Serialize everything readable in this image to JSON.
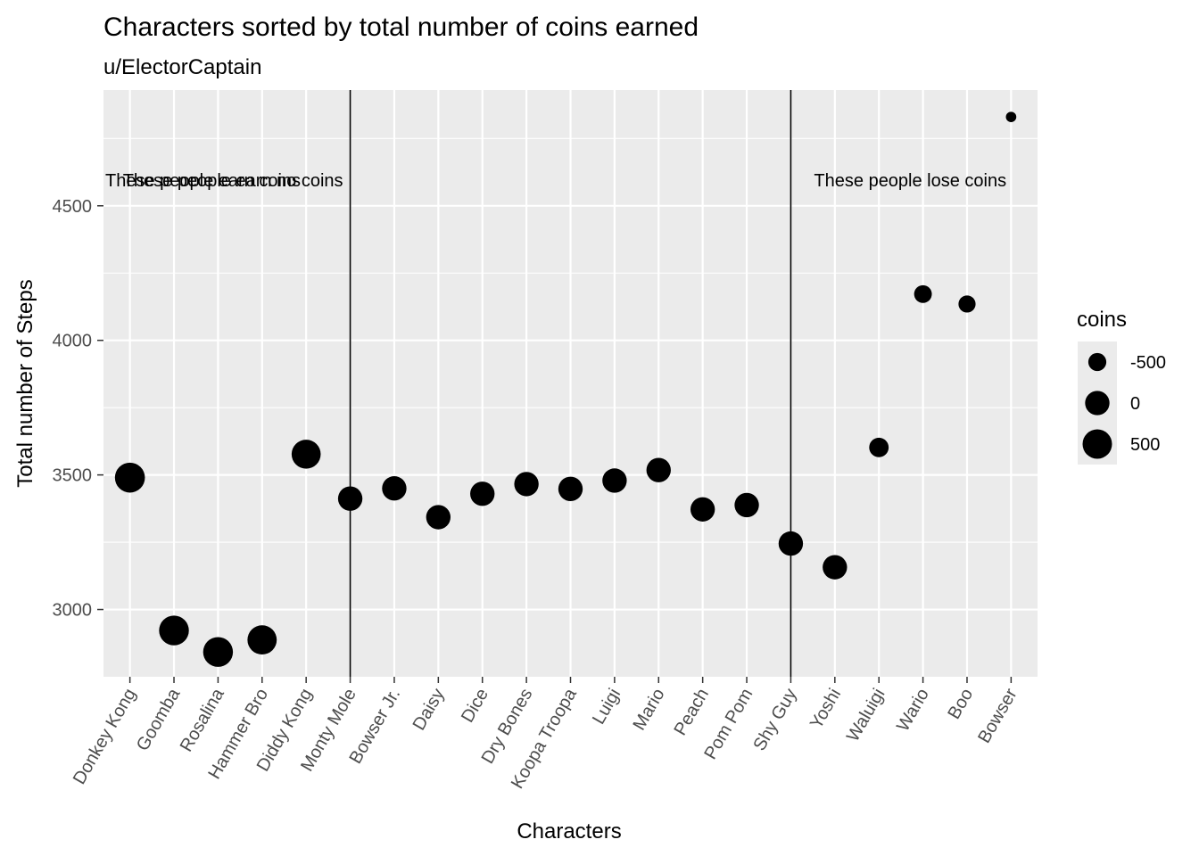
{
  "chart_data": {
    "type": "scatter",
    "title": "Characters sorted by total number of coins earned",
    "subtitle": "u/ElectorCaptain",
    "xlabel": "Characters",
    "ylabel": "Total number of Steps",
    "categories": [
      "Donkey Kong",
      "Goomba",
      "Rosalina",
      "Hammer Bro",
      "Diddy Kong",
      "Monty Mole",
      "Bowser Jr.",
      "Daisy",
      "Dice",
      "Dry Bones",
      "Koopa Troopa",
      "Luigi",
      "Mario",
      "Peach",
      "Pom Pom",
      "Shy Guy",
      "Yoshi",
      "Waluigi",
      "Wario",
      "Boo",
      "Bowser"
    ],
    "y": [
      3490,
      2922,
      2842,
      2887,
      3577,
      3412,
      3450,
      3343,
      3430,
      3466,
      3448,
      3479,
      3518,
      3372,
      3388,
      3245,
      3157,
      3602,
      4172,
      4135,
      4830
    ],
    "coins_size": [
      560,
      540,
      540,
      480,
      460,
      0,
      0,
      0,
      0,
      0,
      0,
      0,
      0,
      0,
      0,
      0,
      0,
      -400,
      -520,
      -560,
      -900
    ],
    "ylim": [
      2750,
      4930
    ],
    "yticks": [
      3000,
      3500,
      4000,
      4500
    ],
    "grid": true,
    "vlines_at": [
      "Monty Mole",
      "Shy Guy"
    ],
    "annotations": [
      {
        "text": "These people earn coins",
        "anchor_category": "Donkey Kong",
        "y": 4595,
        "align": "start"
      },
      {
        "text": "These people earn no coins",
        "anchor_category": "Monty Mole",
        "y": 4595,
        "align": "end"
      },
      {
        "text": "These people lose coins",
        "anchor_category": "Shy Guy",
        "y": 4595,
        "align": "start"
      }
    ],
    "legend": {
      "title": "coins",
      "placement": "right",
      "entries": [
        {
          "label": "-500",
          "value": -500
        },
        {
          "label": "0",
          "value": 0
        },
        {
          "label": "500",
          "value": 500
        }
      ]
    },
    "colors": {
      "panel": "#ebebeb",
      "grid": "#ffffff",
      "point": "#000000",
      "vline": "#000000"
    }
  }
}
